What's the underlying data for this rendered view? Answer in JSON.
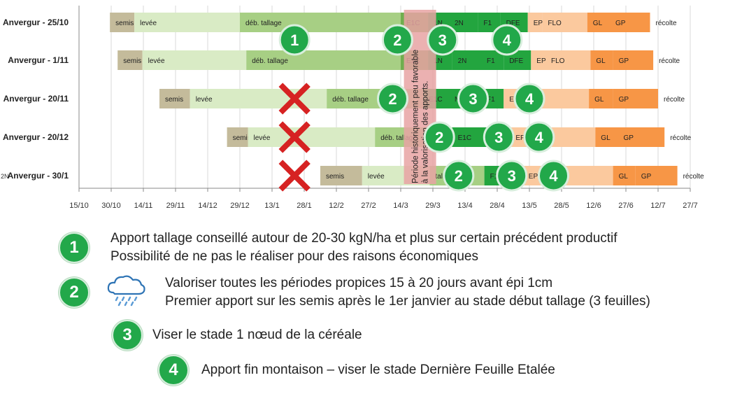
{
  "chart_data": {
    "type": "gantt",
    "x_ticks": [
      "15/10",
      "30/10",
      "14/11",
      "29/11",
      "14/12",
      "29/12",
      "13/1",
      "28/1",
      "12/2",
      "27/2",
      "14/3",
      "29/3",
      "13/4",
      "28/4",
      "13/5",
      "28/5",
      "12/6",
      "27/6",
      "12/7",
      "27/7"
    ],
    "rows": [
      {
        "name": "Anvergur - 25/10",
        "segments": [
          {
            "label": "semis",
            "from": 0.96,
            "to": 1.72,
            "color": "#c4bb9b"
          },
          {
            "label": "levée",
            "from": 1.72,
            "to": 5.0,
            "color": "#d9ebc5"
          },
          {
            "label": "déb. tallage",
            "from": 5.0,
            "to": 10.0,
            "color": "#a7cf84"
          },
          {
            "label": "E1C",
            "from": 10.0,
            "to": 10.85,
            "color": "#6fae4e"
          },
          {
            "label": "1N",
            "from": 10.85,
            "to": 11.5,
            "color": "#23a53f"
          },
          {
            "label": "2N",
            "from": 11.5,
            "to": 12.4,
            "color": "#23a53f"
          },
          {
            "label": "F1",
            "from": 12.4,
            "to": 13.1,
            "color": "#23a53f"
          },
          {
            "label": "DFE",
            "from": 13.1,
            "to": 13.95,
            "color": "#23a53f"
          },
          {
            "label": "EPI",
            "from": 13.95,
            "to": 14.4,
            "color": "#fbc99e"
          },
          {
            "label": "FLO",
            "from": 14.4,
            "to": 15.8,
            "color": "#fbc99e"
          },
          {
            "label": "GL",
            "from": 15.8,
            "to": 16.5,
            "color": "#f79646"
          },
          {
            "label": "GP",
            "from": 16.5,
            "to": 17.75,
            "color": "#f79646"
          },
          {
            "label": "récolte",
            "from": 17.75,
            "to": 18.3,
            "color": "none"
          }
        ]
      },
      {
        "name": "Anvergur - 1/11",
        "segments": [
          {
            "label": "semis",
            "from": 1.2,
            "to": 1.97,
            "color": "#c4bb9b"
          },
          {
            "label": "levée",
            "from": 1.97,
            "to": 5.2,
            "color": "#d9ebc5"
          },
          {
            "label": "déb. tallage",
            "from": 5.2,
            "to": 10.0,
            "color": "#a7cf84"
          },
          {
            "label": "E1C",
            "from": 10.0,
            "to": 10.85,
            "color": "#6fae4e"
          },
          {
            "label": "1N",
            "from": 10.85,
            "to": 11.6,
            "color": "#23a53f"
          },
          {
            "label": "2N",
            "from": 11.6,
            "to": 12.5,
            "color": "#23a53f"
          },
          {
            "label": "F1",
            "from": 12.5,
            "to": 13.2,
            "color": "#23a53f"
          },
          {
            "label": "DFE",
            "from": 13.2,
            "to": 14.05,
            "color": "#23a53f"
          },
          {
            "label": "EPI",
            "from": 14.05,
            "to": 14.5,
            "color": "#fbc99e"
          },
          {
            "label": "FLO",
            "from": 14.5,
            "to": 15.9,
            "color": "#fbc99e"
          },
          {
            "label": "GL",
            "from": 15.9,
            "to": 16.6,
            "color": "#f79646"
          },
          {
            "label": "GP",
            "from": 16.6,
            "to": 17.85,
            "color": "#f79646"
          },
          {
            "label": "récolte",
            "from": 17.85,
            "to": 18.5,
            "color": "none"
          }
        ]
      },
      {
        "name": "Anvergur - 20/11",
        "segments": [
          {
            "label": "semis",
            "from": 2.5,
            "to": 3.45,
            "color": "#c4bb9b"
          },
          {
            "label": "levée",
            "from": 3.45,
            "to": 7.7,
            "color": "#d9ebc5"
          },
          {
            "label": "déb. tallage",
            "from": 7.7,
            "to": 10.7,
            "color": "#a7cf84"
          },
          {
            "label": "E1C",
            "from": 10.7,
            "to": 11.5,
            "color": "#23a53f"
          },
          {
            "label": "N",
            "from": 11.5,
            "to": 12.5,
            "color": "#23a53f"
          },
          {
            "label": "F1",
            "from": 12.5,
            "to": 13.2,
            "color": "#23a53f"
          },
          {
            "label": "EPI",
            "from": 13.2,
            "to": 13.75,
            "color": "#fbc99e"
          },
          {
            "label": "FLO",
            "from": 13.75,
            "to": 15.85,
            "color": "#fbc99e"
          },
          {
            "label": "GL",
            "from": 15.85,
            "to": 16.6,
            "color": "#f79646"
          },
          {
            "label": "GP",
            "from": 16.6,
            "to": 18.0,
            "color": "#f79646"
          },
          {
            "label": "récolte",
            "from": 18.0,
            "to": 18.6,
            "color": "none"
          }
        ]
      },
      {
        "name": "Anvergur - 20/12",
        "segments": [
          {
            "label": "semis",
            "from": 4.6,
            "to": 5.25,
            "color": "#c4bb9b"
          },
          {
            "label": "levée",
            "from": 5.25,
            "to": 9.2,
            "color": "#d9ebc5"
          },
          {
            "label": "déb. tallage",
            "from": 9.2,
            "to": 11.6,
            "color": "#a7cf84"
          },
          {
            "label": "E1C",
            "from": 11.6,
            "to": 12.5,
            "color": "#23a53f"
          },
          {
            "label": "N",
            "from": 12.5,
            "to": 13.4,
            "color": "#23a53f"
          },
          {
            "label": "EPI",
            "from": 13.4,
            "to": 13.95,
            "color": "#fbc99e"
          },
          {
            "label": "FLO",
            "from": 13.95,
            "to": 16.05,
            "color": "#fbc99e"
          },
          {
            "label": "GL",
            "from": 16.05,
            "to": 16.75,
            "color": "#f79646"
          },
          {
            "label": "GP",
            "from": 16.75,
            "to": 18.2,
            "color": "#f79646"
          },
          {
            "label": "récolte",
            "from": 18.2,
            "to": 18.8,
            "color": "none"
          }
        ]
      },
      {
        "name": "Anvergur - 30/1",
        "prefix": "2N",
        "segments": [
          {
            "label": "semis",
            "from": 7.5,
            "to": 8.8,
            "color": "#c4bb9b"
          },
          {
            "label": "levée",
            "from": 8.8,
            "to": 10.9,
            "color": "#d9ebc5"
          },
          {
            "label": "tallage",
            "from": 10.9,
            "to": 12.6,
            "color": "#a7cf84"
          },
          {
            "label": "F1",
            "from": 12.6,
            "to": 13.8,
            "color": "#23a53f"
          },
          {
            "label": "EPI",
            "from": 13.8,
            "to": 14.35,
            "color": "#fbc99e"
          },
          {
            "label": "FLO",
            "from": 14.35,
            "to": 16.6,
            "color": "#fbc99e"
          },
          {
            "label": "GL",
            "from": 16.6,
            "to": 17.3,
            "color": "#f79646"
          },
          {
            "label": "GP",
            "from": 17.3,
            "to": 18.6,
            "color": "#f79646"
          },
          {
            "label": "récolte",
            "from": 18.6,
            "to": 19.2,
            "color": "none"
          }
        ]
      }
    ],
    "period_band": {
      "from": 10.1,
      "to": 11.1,
      "color": "#e8a3a3",
      "text": "Période historiquement peu favorable à la valorisation des apports."
    },
    "markers": [
      {
        "row": 0,
        "label": "1",
        "at": 6.7
      },
      {
        "row": 0,
        "label": "2",
        "at": 9.9
      },
      {
        "row": 0,
        "label": "3",
        "at": 11.3
      },
      {
        "row": 0,
        "label": "4",
        "at": 13.3
      },
      {
        "row": 2,
        "label": "2",
        "at": 9.75
      },
      {
        "row": 2,
        "label": "3",
        "at": 12.25
      },
      {
        "row": 2,
        "label": "4",
        "at": 14.0
      },
      {
        "row": 3,
        "label": "2",
        "at": 11.2
      },
      {
        "row": 3,
        "label": "3",
        "at": 13.05
      },
      {
        "row": 3,
        "label": "4",
        "at": 14.3
      },
      {
        "row": 4,
        "label": "2",
        "at": 11.8
      },
      {
        "row": 4,
        "label": "3",
        "at": 13.45
      },
      {
        "row": 4,
        "label": "4",
        "at": 14.75
      }
    ],
    "crosses": [
      {
        "row": 2,
        "at": 6.7
      },
      {
        "row": 3,
        "at": 6.7
      },
      {
        "row": 4,
        "at": 6.7
      }
    ]
  },
  "legend": [
    {
      "number": "1",
      "lines": [
        "Apport tallage conseillé autour de 20-30 kgN/ha et plus sur certain précédent productif",
        "Possibilité de ne pas le réaliser pour des raisons économiques"
      ]
    },
    {
      "number": "2",
      "icon": "rain-cloud-icon",
      "lines": [
        "Valoriser toutes les périodes propices 15 à 20 jours avant épi 1cm",
        "Premier apport sur les semis après le 1er janvier au stade début tallage (3 feuilles)"
      ]
    },
    {
      "number": "3",
      "lines": [
        "Viser le stade 1 nœud de la céréale"
      ]
    },
    {
      "number": "4",
      "lines": [
        "Apport fin montaison – viser le stade Dernière Feuille Etalée"
      ]
    }
  ]
}
